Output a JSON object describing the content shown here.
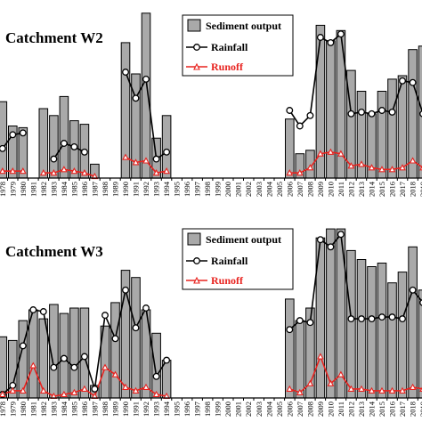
{
  "chart_data": [
    {
      "type": "bar",
      "title": "Catchment W2",
      "legend": {
        "placement": "top-right",
        "entries": [
          "Sediment output",
          "Rainfall",
          "Runoff"
        ]
      },
      "categories": [
        "1978",
        "1979",
        "1980",
        "1981",
        "1982",
        "1983",
        "1984",
        "1985",
        "1986",
        "1987",
        "1988",
        "1989",
        "1990",
        "1991",
        "1992",
        "1993",
        "1994",
        "1995",
        "1996",
        "1997",
        "1998",
        "1999",
        "2000",
        "2001",
        "2002",
        "2003",
        "2004",
        "2005",
        "2006",
        "2007",
        "2008",
        "2009",
        "2010",
        "2011",
        "2012",
        "2013",
        "2014",
        "2015",
        "2016",
        "2017",
        "2018",
        "2019"
      ],
      "ylim": [
        0,
        1
      ],
      "series": [
        {
          "name": "Sediment output",
          "type": "bar",
          "values": [
            0.44,
            0.3,
            0.29,
            null,
            0.4,
            0.36,
            0.47,
            0.33,
            0.31,
            0.08,
            null,
            null,
            0.78,
            0.6,
            0.95,
            0.23,
            0.36,
            null,
            null,
            null,
            null,
            null,
            null,
            null,
            null,
            null,
            null,
            null,
            0.34,
            0.14,
            0.16,
            0.88,
            0.79,
            0.85,
            0.62,
            0.5,
            0.37,
            0.5,
            0.57,
            0.59,
            0.74,
            0.76
          ]
        },
        {
          "name": "Rainfall",
          "type": "line",
          "values": [
            0.17,
            0.25,
            0.26,
            null,
            null,
            0.11,
            0.2,
            0.18,
            0.15,
            null,
            null,
            null,
            0.61,
            0.46,
            0.57,
            0.11,
            0.15,
            null,
            null,
            null,
            null,
            null,
            null,
            null,
            null,
            null,
            null,
            null,
            0.39,
            0.3,
            0.36,
            0.81,
            0.78,
            0.83,
            0.37,
            0.38,
            0.37,
            0.39,
            0.38,
            0.56,
            0.55,
            0.37
          ]
        },
        {
          "name": "Runoff",
          "type": "line",
          "values": [
            0.04,
            0.04,
            0.04,
            null,
            0.03,
            0.03,
            0.05,
            0.04,
            0.03,
            0.01,
            null,
            null,
            0.12,
            0.09,
            0.1,
            0.03,
            0.04,
            null,
            null,
            null,
            null,
            null,
            null,
            null,
            null,
            null,
            null,
            null,
            0.03,
            0.03,
            0.06,
            0.14,
            0.15,
            0.14,
            0.07,
            0.08,
            0.06,
            0.05,
            0.05,
            0.06,
            0.1,
            0.06
          ]
        }
      ]
    },
    {
      "type": "bar",
      "title": "Catchment W3",
      "legend": {
        "placement": "top-right",
        "entries": [
          "Sediment output",
          "Rainfall",
          "Runoff"
        ]
      },
      "categories": [
        "1978",
        "1979",
        "1980",
        "1981",
        "1982",
        "1983",
        "1984",
        "1985",
        "1986",
        "1987",
        "1988",
        "1989",
        "1990",
        "1991",
        "1992",
        "1993",
        "1994",
        "1995",
        "1996",
        "1997",
        "1998",
        "1999",
        "2000",
        "2001",
        "2002",
        "2003",
        "2004",
        "2005",
        "2006",
        "2007",
        "2008",
        "2009",
        "2010",
        "2011",
        "2012",
        "2013",
        "2014",
        "2015",
        "2016",
        "2017",
        "2018",
        "2019"
      ],
      "ylim": [
        0,
        1
      ],
      "series": [
        {
          "name": "Sediment output",
          "type": "bar",
          "values": [
            0.34,
            0.32,
            0.43,
            0.49,
            0.44,
            0.52,
            0.47,
            0.5,
            0.5,
            0.07,
            0.4,
            0.53,
            0.71,
            0.67,
            0.49,
            0.36,
            0.21,
            null,
            null,
            null,
            null,
            null,
            null,
            null,
            null,
            null,
            null,
            null,
            0.55,
            0.43,
            0.5,
            0.89,
            0.94,
            0.94,
            0.82,
            0.77,
            0.73,
            0.75,
            0.64,
            0.7,
            0.84,
            0.6
          ]
        },
        {
          "name": "Rainfall",
          "type": "line",
          "values": [
            0.02,
            0.07,
            0.29,
            0.49,
            0.48,
            0.17,
            0.22,
            0.17,
            0.23,
            0.05,
            0.46,
            0.33,
            0.6,
            0.39,
            0.5,
            0.12,
            0.21,
            null,
            null,
            null,
            null,
            null,
            null,
            null,
            null,
            null,
            null,
            null,
            0.38,
            0.43,
            0.42,
            0.88,
            0.84,
            0.91,
            0.44,
            0.44,
            0.44,
            0.45,
            0.45,
            0.44,
            0.6,
            0.53
          ]
        },
        {
          "name": "Runoff",
          "type": "line",
          "values": [
            0.02,
            0.04,
            0.04,
            0.18,
            0.04,
            0.01,
            0.02,
            0.03,
            0.05,
            0.01,
            0.17,
            0.13,
            0.06,
            0.04,
            0.06,
            0.02,
            0.01,
            null,
            null,
            null,
            null,
            null,
            null,
            null,
            null,
            null,
            null,
            null,
            0.05,
            0.03,
            0.08,
            0.23,
            0.08,
            0.13,
            0.05,
            0.05,
            0.04,
            0.04,
            0.04,
            0.04,
            0.06,
            0.05
          ]
        }
      ]
    }
  ]
}
